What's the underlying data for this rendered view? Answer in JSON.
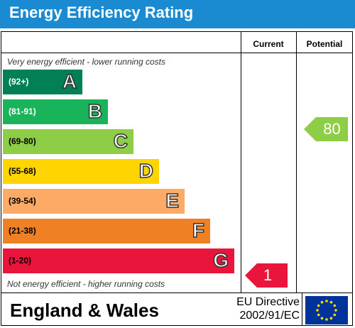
{
  "title": "Energy Efficiency Rating",
  "columns": {
    "current": "Current",
    "potential": "Potential"
  },
  "notes": {
    "top": "Very energy efficient - lower running costs",
    "bottom": "Not energy efficient - higher running costs"
  },
  "bands": [
    {
      "range": "(92+)",
      "letter": "A",
      "color": "#008054",
      "text_color": "#ffffff"
    },
    {
      "range": "(81-91)",
      "letter": "B",
      "color": "#19b459",
      "text_color": "#ffffff"
    },
    {
      "range": "(69-80)",
      "letter": "C",
      "color": "#8dce46",
      "text_color": "#000000"
    },
    {
      "range": "(55-68)",
      "letter": "D",
      "color": "#ffd500",
      "text_color": "#000000"
    },
    {
      "range": "(39-54)",
      "letter": "E",
      "color": "#fcaa65",
      "text_color": "#000000"
    },
    {
      "range": "(21-38)",
      "letter": "F",
      "color": "#ef8023",
      "text_color": "#000000"
    },
    {
      "range": "(1-20)",
      "letter": "G",
      "color": "#e9153b",
      "text_color": "#000000"
    }
  ],
  "ratings": {
    "current": {
      "value": "1",
      "band": "G",
      "color": "#e9153b"
    },
    "potential": {
      "value": "80",
      "band": "C",
      "color": "#8dce46"
    }
  },
  "footer": {
    "region": "England & Wales",
    "directive_line1": "EU Directive",
    "directive_line2": "2002/91/EC"
  }
}
